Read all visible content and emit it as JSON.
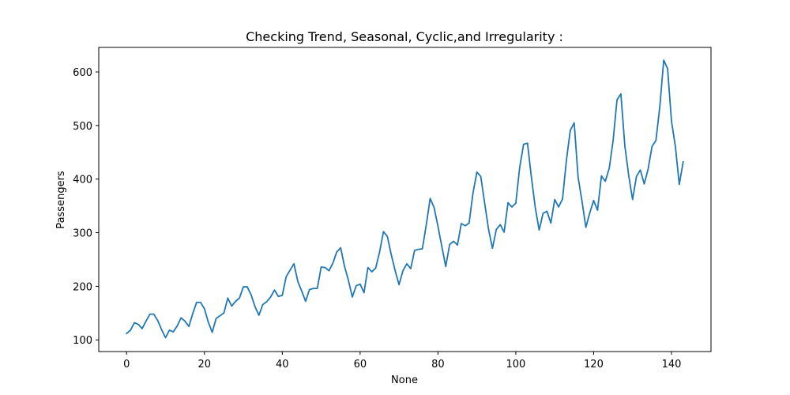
{
  "chart_data": {
    "type": "line",
    "title": "Checking Trend, Seasonal, Cyclic,and Irregularity :",
    "xlabel": "None",
    "ylabel": "Passengers",
    "xlim": [
      -7.15,
      150.15
    ],
    "ylim": [
      78.2,
      645.8
    ],
    "x_ticks": [
      0,
      20,
      40,
      60,
      80,
      100,
      120,
      140
    ],
    "y_ticks": [
      100,
      200,
      300,
      400,
      500,
      600
    ],
    "grid": false,
    "line_color": "#1f77b4",
    "series": [
      {
        "x": [
          0,
          1,
          2,
          3,
          4,
          5,
          6,
          7,
          8,
          9,
          10,
          11,
          12,
          13,
          14,
          15,
          16,
          17,
          18,
          19,
          20,
          21,
          22,
          23,
          24,
          25,
          26,
          27,
          28,
          29,
          30,
          31,
          32,
          33,
          34,
          35,
          36,
          37,
          38,
          39,
          40,
          41,
          42,
          43,
          44,
          45,
          46,
          47,
          48,
          49,
          50,
          51,
          52,
          53,
          54,
          55,
          56,
          57,
          58,
          59,
          60,
          61,
          62,
          63,
          64,
          65,
          66,
          67,
          68,
          69,
          70,
          71,
          72,
          73,
          74,
          75,
          76,
          77,
          78,
          79,
          80,
          81,
          82,
          83,
          84,
          85,
          86,
          87,
          88,
          89,
          90,
          91,
          92,
          93,
          94,
          95,
          96,
          97,
          98,
          99,
          100,
          101,
          102,
          103,
          104,
          105,
          106,
          107,
          108,
          109,
          110,
          111,
          112,
          113,
          114,
          115,
          116,
          117,
          118,
          119,
          120,
          121,
          122,
          123,
          124,
          125,
          126,
          127,
          128,
          129,
          130,
          131,
          132,
          133,
          134,
          135,
          136,
          137,
          138,
          139,
          140,
          141,
          142,
          143
        ],
        "values": [
          112,
          118,
          132,
          129,
          121,
          135,
          148,
          148,
          136,
          119,
          104,
          118,
          115,
          126,
          141,
          135,
          125,
          149,
          170,
          170,
          158,
          133,
          114,
          140,
          145,
          150,
          178,
          163,
          172,
          178,
          199,
          199,
          184,
          162,
          146,
          166,
          171,
          180,
          193,
          181,
          183,
          218,
          230,
          242,
          209,
          191,
          172,
          194,
          196,
          196,
          236,
          235,
          229,
          243,
          264,
          272,
          237,
          211,
          180,
          201,
          204,
          188,
          235,
          227,
          234,
          264,
          302,
          293,
          259,
          229,
          203,
          229,
          242,
          233,
          267,
          269,
          270,
          315,
          364,
          347,
          312,
          274,
          237,
          278,
          284,
          277,
          317,
          313,
          318,
          374,
          413,
          405,
          355,
          306,
          271,
          306,
          315,
          301,
          356,
          348,
          355,
          422,
          465,
          467,
          404,
          347,
          305,
          336,
          340,
          318,
          362,
          348,
          363,
          435,
          491,
          505,
          404,
          359,
          310,
          337,
          360,
          342,
          406,
          396,
          420,
          472,
          548,
          559,
          463,
          407,
          362,
          405,
          417,
          391,
          419,
          461,
          472,
          535,
          622,
          606,
          508,
          461,
          390,
          432
        ]
      }
    ]
  }
}
